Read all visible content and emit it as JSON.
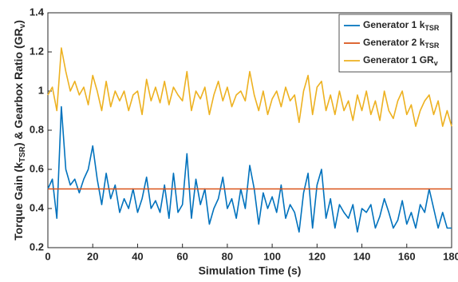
{
  "chart_data": {
    "type": "line",
    "xlabel": "Simulation Time (s)",
    "ylabel_parts": [
      {
        "text": "Torque Gain (k"
      },
      {
        "text": "TSR",
        "sub": true
      },
      {
        "text": ") & Gearbox Ratio (GR"
      },
      {
        "text": "v",
        "sub": true
      },
      {
        "text": ")"
      }
    ],
    "xlim": [
      0,
      180
    ],
    "xticks": [
      0,
      20,
      40,
      60,
      80,
      100,
      120,
      140,
      160,
      180
    ],
    "ylim": [
      0.2,
      1.4
    ],
    "yticks": [
      0.2,
      0.4,
      0.6,
      0.8,
      1,
      1.2,
      1.4
    ],
    "legend": "top-right",
    "x": [
      0,
      2,
      4,
      6,
      8,
      10,
      12,
      14,
      16,
      18,
      20,
      22,
      24,
      26,
      28,
      30,
      32,
      34,
      36,
      38,
      40,
      42,
      44,
      46,
      48,
      50,
      52,
      54,
      56,
      58,
      60,
      62,
      64,
      66,
      68,
      70,
      72,
      74,
      76,
      78,
      80,
      82,
      84,
      86,
      88,
      90,
      92,
      94,
      96,
      98,
      100,
      102,
      104,
      106,
      108,
      110,
      112,
      114,
      116,
      118,
      120,
      122,
      124,
      126,
      128,
      130,
      132,
      134,
      136,
      138,
      140,
      142,
      144,
      146,
      148,
      150,
      152,
      154,
      156,
      158,
      160,
      162,
      164,
      166,
      168,
      170,
      172,
      174,
      176,
      178,
      180
    ],
    "series": [
      {
        "name": "Generator 1 k",
        "name_sub": "TSR",
        "color": "#0072BD",
        "values": [
          0.5,
          0.55,
          0.35,
          0.92,
          0.6,
          0.52,
          0.55,
          0.48,
          0.55,
          0.6,
          0.72,
          0.55,
          0.42,
          0.58,
          0.45,
          0.52,
          0.38,
          0.45,
          0.4,
          0.5,
          0.38,
          0.45,
          0.56,
          0.4,
          0.44,
          0.38,
          0.52,
          0.35,
          0.58,
          0.38,
          0.42,
          0.68,
          0.35,
          0.55,
          0.42,
          0.5,
          0.32,
          0.4,
          0.45,
          0.56,
          0.4,
          0.45,
          0.35,
          0.5,
          0.4,
          0.62,
          0.5,
          0.32,
          0.48,
          0.4,
          0.46,
          0.38,
          0.52,
          0.35,
          0.42,
          0.38,
          0.28,
          0.48,
          0.58,
          0.3,
          0.52,
          0.6,
          0.35,
          0.45,
          0.3,
          0.42,
          0.38,
          0.35,
          0.42,
          0.28,
          0.4,
          0.38,
          0.42,
          0.3,
          0.36,
          0.45,
          0.38,
          0.3,
          0.34,
          0.44,
          0.32,
          0.38,
          0.3,
          0.42,
          0.38,
          0.5,
          0.4,
          0.3,
          0.38,
          0.3,
          0.3
        ]
      },
      {
        "name": "Generator 2 k",
        "name_sub": "TSR",
        "color": "#D95319",
        "x": [
          0,
          180
        ],
        "values": [
          0.5,
          0.5
        ]
      },
      {
        "name": "Generator 1 GR",
        "name_sub": "v",
        "color": "#EDB120",
        "values": [
          0.98,
          1.02,
          0.9,
          1.22,
          1.1,
          1.0,
          1.05,
          0.98,
          1.02,
          0.93,
          1.08,
          1.0,
          0.9,
          1.05,
          0.92,
          1.0,
          0.95,
          1.0,
          0.9,
          0.98,
          1.0,
          0.88,
          1.06,
          0.95,
          1.02,
          0.94,
          1.05,
          0.93,
          1.02,
          0.98,
          0.95,
          1.1,
          0.9,
          1.0,
          0.96,
          1.02,
          0.88,
          0.98,
          1.05,
          0.95,
          1.02,
          0.92,
          0.98,
          1.0,
          0.95,
          1.1,
          0.98,
          0.9,
          1.0,
          0.88,
          0.96,
          1.0,
          0.92,
          1.02,
          0.95,
          0.98,
          0.84,
          1.0,
          1.08,
          0.88,
          1.02,
          1.05,
          0.9,
          0.98,
          0.88,
          1.0,
          0.9,
          0.95,
          0.85,
          0.98,
          0.9,
          1.0,
          0.88,
          0.95,
          0.85,
          1.0,
          0.9,
          0.86,
          0.95,
          1.0,
          0.88,
          0.93,
          0.82,
          0.9,
          0.95,
          0.98,
          0.88,
          0.95,
          0.82,
          0.9,
          0.82
        ]
      }
    ]
  }
}
